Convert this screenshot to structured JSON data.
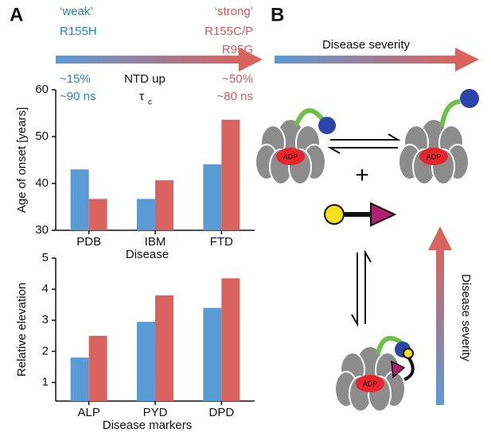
{
  "panel_a": {
    "label": "A",
    "weak": "‘weak’",
    "weak_mutant": "R155H",
    "strong": "‘strong’",
    "strong_mutants": [
      "R155C/P",
      "R95G"
    ],
    "weak_stats": [
      "~15%",
      "~90 ns"
    ],
    "middle_stats": [
      "NTD up",
      "τ"
    ],
    "middle_sub": "c",
    "strong_stats": [
      "~50%",
      "~80 ns"
    ]
  },
  "panel_b": {
    "label": "B",
    "severity_top": "Disease severity",
    "severity_side": "Disease severity",
    "adp": [
      "ADP",
      "ADP",
      "ADP"
    ],
    "plus": "+"
  },
  "chart_data": [
    {
      "type": "bar",
      "categories": [
        "PDB",
        "IBM",
        "FTD"
      ],
      "x_label": "Disease",
      "y_label": "Age of onset [years]",
      "series": [
        {
          "color": "#5b9bd5",
          "values": [
            43,
            36.7,
            44.1
          ]
        },
        {
          "color": "#d9635e",
          "values": [
            36.7,
            40.7,
            53.6
          ]
        }
      ],
      "ylim": [
        30,
        60
      ],
      "yticks": [
        30,
        40,
        50,
        60
      ]
    },
    {
      "type": "bar",
      "categories": [
        "ALP",
        "PYD",
        "DPD"
      ],
      "x_label": "Disease markers",
      "y_label": "Relative elevation",
      "series": [
        {
          "color": "#5b9bd5",
          "values": [
            1.8,
            2.95,
            3.4
          ]
        },
        {
          "color": "#d9635e",
          "values": [
            2.5,
            3.8,
            4.35
          ]
        }
      ],
      "ylim": [
        0.4,
        5
      ],
      "yticks": [
        1,
        2,
        3,
        4,
        5
      ]
    }
  ]
}
